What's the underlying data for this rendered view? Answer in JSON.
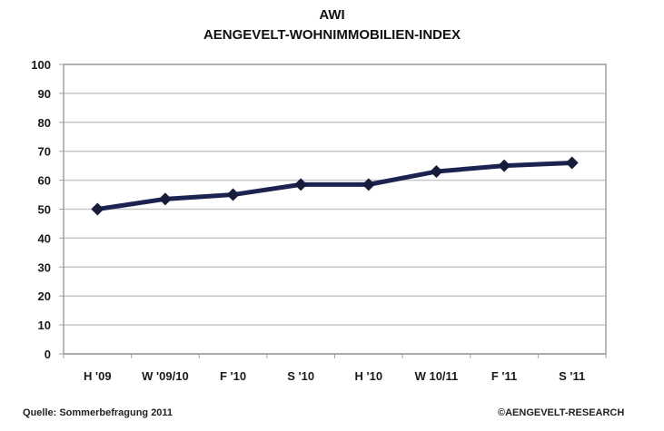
{
  "chart_data": {
    "type": "line",
    "title": "AWI",
    "subtitle": "AENGEVELT-WOHNIMMOBILIEN-INDEX",
    "xlabel": "",
    "ylabel": "",
    "categories": [
      "H '09",
      "W '09/10",
      "F '10",
      "S '10",
      "H '10",
      "W 10/11",
      "F '11",
      "S '11"
    ],
    "series": [
      {
        "name": "AWI",
        "values": [
          50,
          53.5,
          55,
          58.5,
          58.5,
          63,
          65,
          66
        ],
        "color": "#1b2350",
        "marker": "diamond"
      }
    ],
    "ylim": [
      0,
      100
    ],
    "yticks": [
      0,
      10,
      20,
      30,
      40,
      50,
      60,
      70,
      80,
      90,
      100
    ],
    "grid": true,
    "legend": "none"
  },
  "footer": {
    "source": "Quelle: Sommerbefragung 2011",
    "copyright": "©AENGEVELT-RESEARCH"
  },
  "colors": {
    "line": "#1b2350",
    "grid": "#c8c8c8",
    "axis": "#a0a0a0"
  }
}
